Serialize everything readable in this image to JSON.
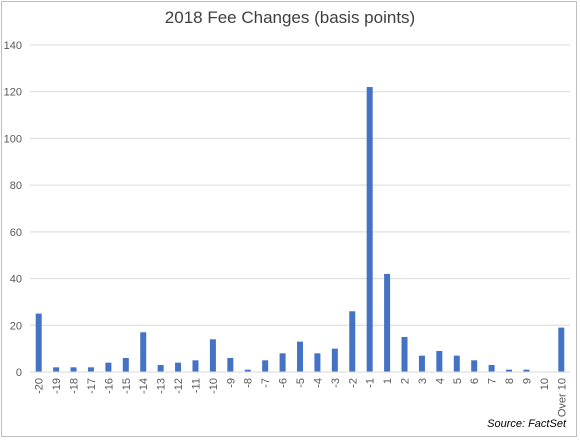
{
  "chart_data": {
    "type": "bar",
    "title": "2018 Fee Changes (basis points)",
    "xlabel": "",
    "ylabel": "",
    "ylim": [
      0,
      140
    ],
    "yticks": [
      0,
      20,
      40,
      60,
      80,
      100,
      120,
      140
    ],
    "grid": true,
    "legend": "none",
    "bar_color": "#4472c4",
    "categories": [
      "-20",
      "-19",
      "-18",
      "-17",
      "-16",
      "-15",
      "-14",
      "-13",
      "-12",
      "-11",
      "-10",
      "-9",
      "-8",
      "-7",
      "-6",
      "-5",
      "-4",
      "-3",
      "-2",
      "-1",
      "1",
      "2",
      "3",
      "4",
      "5",
      "6",
      "7",
      "8",
      "9",
      "10",
      "Over 10"
    ],
    "values": [
      25,
      2,
      2,
      2,
      4,
      6,
      17,
      3,
      4,
      5,
      14,
      6,
      1,
      5,
      8,
      13,
      8,
      10,
      26,
      122,
      42,
      15,
      7,
      9,
      7,
      5,
      3,
      1,
      1,
      0,
      19
    ]
  },
  "source": "Source: FactSet"
}
